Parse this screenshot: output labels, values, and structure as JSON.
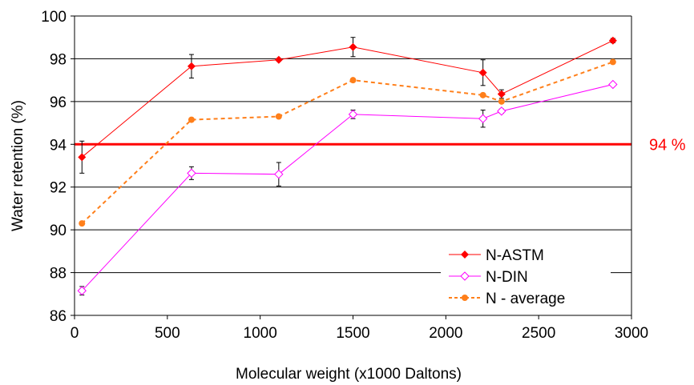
{
  "chart_data": {
    "type": "line",
    "title": "",
    "xlabel": "Molecular weight (x1000 Daltons)",
    "ylabel": "Water retention (%)",
    "xlim": [
      0,
      3000
    ],
    "ylim": [
      86,
      100
    ],
    "xticks": [
      0,
      500,
      1000,
      1500,
      2000,
      2500,
      3000
    ],
    "yticks": [
      86,
      88,
      90,
      92,
      94,
      96,
      98,
      100
    ],
    "x_tick_labels": [
      "0",
      "500",
      "1000",
      "1500",
      "2000",
      "2500",
      "3000"
    ],
    "y_tick_labels": [
      "86",
      "88",
      "90",
      "92",
      "94",
      "96",
      "98",
      "100"
    ],
    "grid": "horizontal",
    "legend_position": "bottom-right",
    "x": [
      40,
      630,
      1100,
      1500,
      2200,
      2300,
      2900
    ],
    "series": [
      {
        "name": "N-ASTM",
        "color": "#ff0000",
        "line": "solid",
        "marker": "filled-diamond",
        "values": [
          93.4,
          97.65,
          97.95,
          98.55,
          97.35,
          96.35,
          98.85
        ],
        "errors": [
          0.75,
          0.55,
          0.05,
          0.45,
          0.6,
          0.2,
          0.1
        ]
      },
      {
        "name": "N-DIN",
        "color": "#ff00ff",
        "line": "solid",
        "marker": "open-diamond",
        "values": [
          87.15,
          92.65,
          92.6,
          95.4,
          95.2,
          95.55,
          96.8
        ],
        "errors": [
          0.2,
          0.3,
          0.55,
          0.2,
          0.4,
          0.1,
          0.05
        ]
      },
      {
        "name": "N - average",
        "color": "#ff7f1a",
        "line": "dashed",
        "marker": "filled-circle",
        "values": [
          90.3,
          95.15,
          95.3,
          97.0,
          96.3,
          96.0,
          97.85
        ],
        "errors": []
      }
    ],
    "reference_line": {
      "value": 94,
      "label": "94 %",
      "color": "#ff0000"
    }
  }
}
